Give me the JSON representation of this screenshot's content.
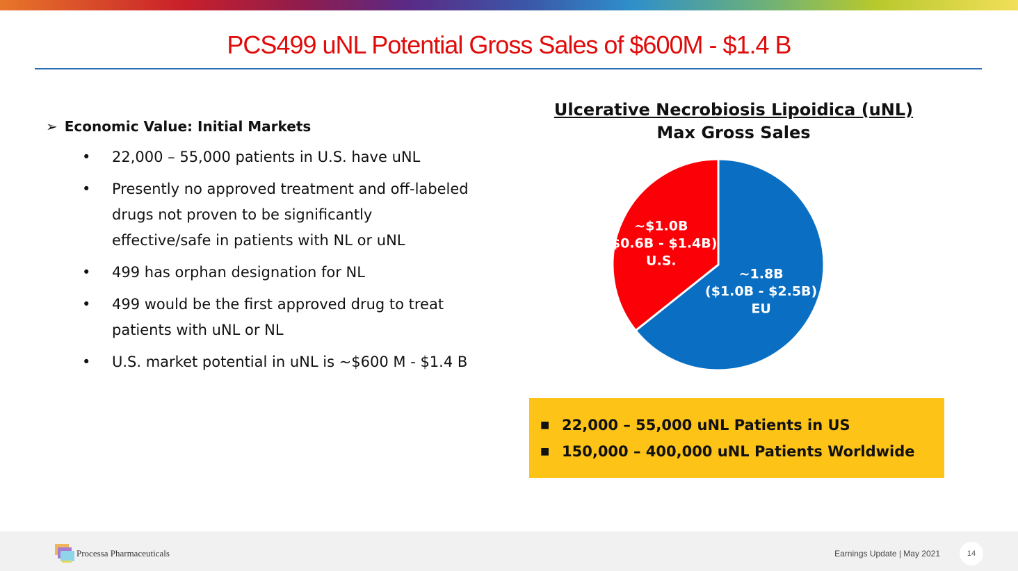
{
  "title": "PCS499 uNL Potential Gross Sales of $600M - $1.4 B",
  "left": {
    "heading": "Economic Value: Initial Markets",
    "bullet_symbol": "•",
    "items": [
      "22,000 – 55,000 patients in U.S. have uNL",
      "Presently no approved treatment and off-labeled drugs not proven to be significantly effective/safe in patients with NL or uNL",
      "499 has orphan designation for NL",
      "499 would be the first approved drug to treat patients with uNL or NL",
      "U.S. market potential in uNL is ~$600 M - $1.4 B"
    ]
  },
  "chart_data": {
    "type": "pie",
    "title": "Ulcerative Necrobiosis Lipoidica (uNL)",
    "subtitle": "Max Gross Sales",
    "slices": [
      {
        "name": "EU",
        "value": 1.8,
        "label": "~1.8B",
        "range": "($1.0B - $2.5B)",
        "color": "#0a6fc2"
      },
      {
        "name": "U.S.",
        "value": 1.0,
        "label": "~$1.0B",
        "range": "($0.6B - $1.4B)",
        "color": "#fb0006"
      }
    ],
    "units": "$B"
  },
  "callout": {
    "items": [
      "22,000 – 55,000 uNL Patients in US",
      "150,000 – 400,000 uNL Patients Worldwide"
    ]
  },
  "footer": {
    "company": "Processa Pharmaceuticals",
    "event": "Earnings Update | May 2021",
    "page": "14"
  }
}
